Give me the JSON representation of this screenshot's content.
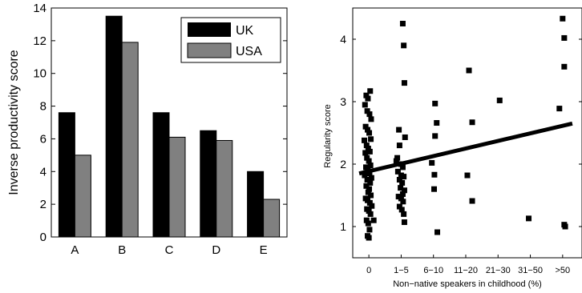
{
  "chart_data": [
    {
      "type": "bar",
      "title": "",
      "xlabel": "",
      "ylabel": "Inverse productivity score",
      "categories": [
        "A",
        "B",
        "C",
        "D",
        "E"
      ],
      "ylim": [
        0,
        14
      ],
      "yticks": [
        "0",
        "2",
        "4",
        "6",
        "8",
        "10",
        "12",
        "14"
      ],
      "grid": false,
      "legend_position": "top-right",
      "series": [
        {
          "name": "UK",
          "color": "#000000",
          "values": [
            7.6,
            13.5,
            7.6,
            6.5,
            4.0
          ]
        },
        {
          "name": "USA",
          "color": "#808080",
          "values": [
            5.0,
            11.9,
            6.1,
            5.9,
            2.3
          ]
        }
      ]
    },
    {
      "type": "scatter",
      "title": "",
      "xlabel": "Non−native speakers in childhood (%)",
      "ylabel": "Regularity score",
      "categories": [
        "0",
        "1−5",
        "6−10",
        "11−20",
        "21−30",
        "31−50",
        ">50"
      ],
      "ylim": [
        0.5,
        4.5
      ],
      "yticks": [
        "1",
        "2",
        "3",
        "4"
      ],
      "grid": false,
      "marker_color": "#000000",
      "points": [
        [
          -0.12,
          2.95
        ],
        [
          -0.08,
          3.1
        ],
        [
          -0.05,
          2.85
        ],
        [
          -0.03,
          3.05
        ],
        [
          0.04,
          3.17
        ],
        [
          0.02,
          2.8
        ],
        [
          0.07,
          2.72
        ],
        [
          -0.1,
          2.6
        ],
        [
          -0.04,
          2.55
        ],
        [
          0.01,
          2.5
        ],
        [
          0.06,
          2.4
        ],
        [
          -0.14,
          2.38
        ],
        [
          -0.07,
          2.3
        ],
        [
          -0.02,
          2.25
        ],
        [
          0.03,
          2.2
        ],
        [
          -0.11,
          2.18
        ],
        [
          -0.06,
          2.1
        ],
        [
          0.0,
          2.05
        ],
        [
          0.05,
          1.98
        ],
        [
          -0.09,
          1.95
        ],
        [
          -0.03,
          1.9
        ],
        [
          0.02,
          1.85
        ],
        [
          -0.13,
          1.82
        ],
        [
          0.08,
          1.78
        ],
        [
          -0.05,
          1.75
        ],
        [
          0.04,
          1.7
        ],
        [
          -0.08,
          1.65
        ],
        [
          0.01,
          1.6
        ],
        [
          -0.02,
          1.55
        ],
        [
          0.06,
          1.5
        ],
        [
          -0.1,
          1.45
        ],
        [
          -0.04,
          1.42
        ],
        [
          0.03,
          1.38
        ],
        [
          0.09,
          1.33
        ],
        [
          -0.06,
          1.28
        ],
        [
          0.0,
          1.25
        ],
        [
          0.05,
          1.2
        ],
        [
          0.15,
          1.1
        ],
        [
          -0.07,
          1.1
        ],
        [
          -0.02,
          1.05
        ],
        [
          0.02,
          0.95
        ],
        [
          -0.04,
          0.85
        ],
        [
          0.0,
          0.82
        ],
        [
          1.05,
          4.25
        ],
        [
          1.08,
          3.9
        ],
        [
          1.1,
          3.3
        ],
        [
          0.93,
          2.55
        ],
        [
          1.12,
          2.43
        ],
        [
          0.95,
          2.3
        ],
        [
          0.88,
          2.1
        ],
        [
          0.85,
          2.05
        ],
        [
          1.0,
          2.0
        ],
        [
          1.05,
          1.95
        ],
        [
          0.9,
          1.88
        ],
        [
          1.0,
          1.82
        ],
        [
          1.08,
          1.8
        ],
        [
          0.95,
          1.75
        ],
        [
          1.03,
          1.7
        ],
        [
          0.98,
          1.62
        ],
        [
          1.1,
          1.58
        ],
        [
          1.05,
          1.52
        ],
        [
          0.92,
          1.48
        ],
        [
          1.0,
          1.45
        ],
        [
          1.06,
          1.4
        ],
        [
          0.95,
          1.32
        ],
        [
          1.02,
          1.27
        ],
        [
          1.08,
          1.2
        ],
        [
          1.1,
          1.07
        ],
        [
          2.05,
          2.97
        ],
        [
          2.1,
          2.66
        ],
        [
          2.05,
          2.45
        ],
        [
          1.95,
          2.02
        ],
        [
          2.03,
          1.83
        ],
        [
          2.02,
          1.6
        ],
        [
          2.12,
          0.91
        ],
        [
          3.1,
          3.5
        ],
        [
          3.2,
          2.67
        ],
        [
          3.05,
          1.82
        ],
        [
          3.2,
          1.41
        ],
        [
          4.05,
          3.02
        ],
        [
          4.95,
          1.13
        ],
        [
          6.0,
          4.33
        ],
        [
          6.05,
          4.02
        ],
        [
          6.05,
          3.56
        ],
        [
          5.9,
          2.89
        ],
        [
          6.05,
          1.03
        ],
        [
          6.08,
          1.0
        ]
      ],
      "regression_line": [
        [
          -0.3,
          1.85
        ],
        [
          6.3,
          2.65
        ]
      ]
    }
  ]
}
